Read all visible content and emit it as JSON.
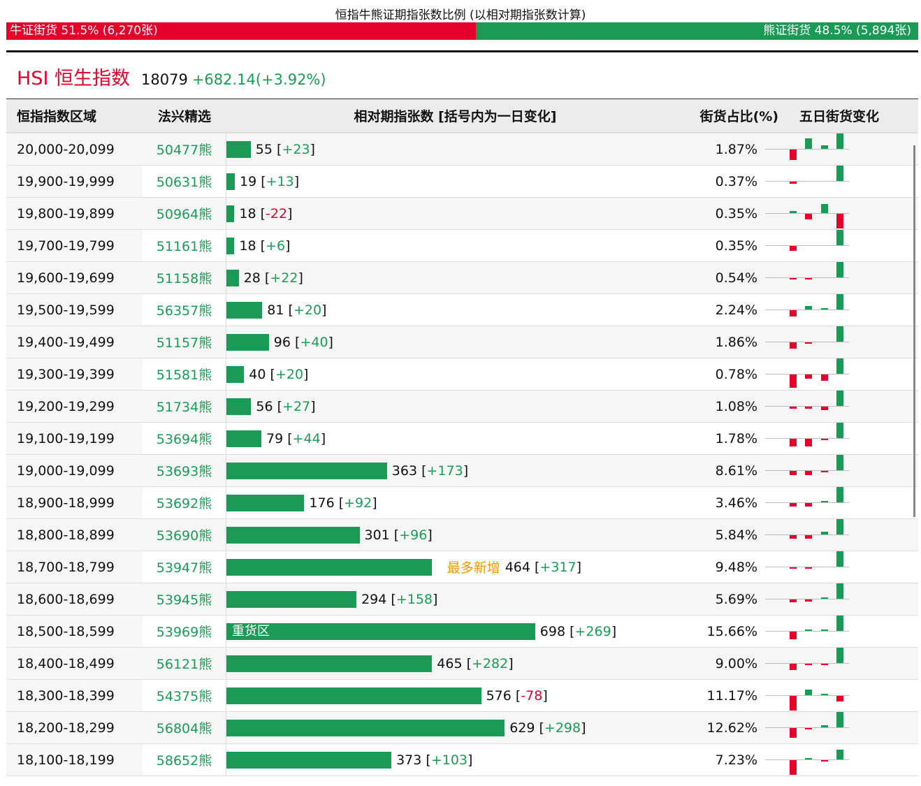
{
  "title": "恒指牛熊证期指张数比例 (以相对期指张数计算)",
  "bull": {
    "label": "牛证街货 51.5% (6,270张)",
    "share": 51.5
  },
  "bear": {
    "label": "熊证街货 48.5% (5,894张)",
    "share": 48.5
  },
  "index": {
    "name": "HSI 恒生指数",
    "price": "18079",
    "change": "+682.14(+3.92%)"
  },
  "colors": {
    "up": "#1b9a56",
    "down": "#e4002b",
    "highlight": "#f39800"
  },
  "headers": [
    "恒指指数区域",
    "法兴精选",
    "相对期指张数 [括号内为一日变化]",
    "街货占比(%)",
    "五日街货变化"
  ],
  "rows": [
    {
      "range": "20,000-20,099",
      "code": "50477熊",
      "count": 55,
      "count_label": "55",
      "chg": "+23",
      "pct": "1.87%",
      "spark": [
        -0.7,
        0.7,
        0.22,
        1
      ]
    },
    {
      "range": "19,900-19,999",
      "code": "50631熊",
      "count": 19,
      "count_label": "19",
      "chg": "+13",
      "pct": "0.37%",
      "spark": [
        -0.13,
        0,
        0,
        1
      ]
    },
    {
      "range": "19,800-19,899",
      "code": "50964熊",
      "count": 18,
      "count_label": "18",
      "chg": "-22",
      "pct": "0.35%",
      "spark": [
        0.13,
        -0.35,
        0.57,
        -0.96
      ]
    },
    {
      "range": "19,700-19,799",
      "code": "51161熊",
      "count": 18,
      "count_label": "18",
      "chg": "+6",
      "pct": "0.35%",
      "spark": [
        -0.3,
        0,
        0,
        1
      ]
    },
    {
      "range": "19,600-19,699",
      "code": "51158熊",
      "count": 28,
      "count_label": "28",
      "chg": "+22",
      "pct": "0.54%",
      "spark": [
        -0.09,
        -0.09,
        0,
        1
      ]
    },
    {
      "range": "19,500-19,599",
      "code": "56357熊",
      "count": 81,
      "count_label": "81",
      "chg": "+20",
      "pct": "2.24%",
      "spark": [
        -0.43,
        0.22,
        0.09,
        1
      ]
    },
    {
      "range": "19,400-19,499",
      "code": "51157熊",
      "count": 96,
      "count_label": "96",
      "chg": "+40",
      "pct": "1.86%",
      "spark": [
        -0.43,
        -0.05,
        0,
        1
      ]
    },
    {
      "range": "19,300-19,399",
      "code": "51581熊",
      "count": 40,
      "count_label": "40",
      "chg": "+20",
      "pct": "0.78%",
      "spark": [
        -0.87,
        -0.26,
        -0.39,
        1
      ]
    },
    {
      "range": "19,200-19,299",
      "code": "51734熊",
      "count": 56,
      "count_label": "56",
      "chg": "+27",
      "pct": "1.08%",
      "spark": [
        -0.13,
        -0.13,
        -0.22,
        1
      ]
    },
    {
      "range": "19,100-19,199",
      "code": "53694熊",
      "count": 79,
      "count_label": "79",
      "chg": "+44",
      "pct": "1.78%",
      "spark": [
        -0.48,
        -0.48,
        -0.09,
        1
      ]
    },
    {
      "range": "19,000-19,099",
      "code": "53693熊",
      "count": 363,
      "count_label": "363",
      "chg": "+173",
      "pct": "8.61%",
      "spark": [
        -0.26,
        -0.26,
        -0.09,
        1
      ]
    },
    {
      "range": "18,900-18,999",
      "code": "53692熊",
      "count": 176,
      "count_label": "176",
      "chg": "+92",
      "pct": "3.46%",
      "spark": [
        -0.22,
        -0.22,
        0.09,
        1
      ]
    },
    {
      "range": "18,800-18,899",
      "code": "53690熊",
      "count": 301,
      "count_label": "301",
      "chg": "+96",
      "pct": "5.84%",
      "spark": [
        -0.22,
        -0.22,
        0.17,
        1
      ]
    },
    {
      "range": "18,700-18,799",
      "code": "53947熊",
      "count": 464,
      "count_label": "464",
      "chg": "+317",
      "pct": "9.48%",
      "tag": "最多新增",
      "spark": [
        -0.05,
        -0.05,
        0,
        1
      ]
    },
    {
      "range": "18,600-18,699",
      "code": "53945熊",
      "count": 294,
      "count_label": "294",
      "chg": "+158",
      "pct": "5.69%",
      "spark": [
        -0.17,
        -0.13,
        0.09,
        1
      ]
    },
    {
      "range": "18,500-18,599",
      "code": "53969熊",
      "count": 698,
      "count_label": "698",
      "chg": "+269",
      "pct": "15.66%",
      "inner": "重货区",
      "spark": [
        -0.52,
        0.09,
        0.09,
        1
      ]
    },
    {
      "range": "18,400-18,499",
      "code": "56121熊",
      "count": 465,
      "count_label": "465",
      "chg": "+282",
      "pct": "9.00%",
      "spark": [
        -0.39,
        -0.05,
        -0.05,
        1
      ]
    },
    {
      "range": "18,300-18,399",
      "code": "54375熊",
      "count": 576,
      "count_label": "576",
      "chg": "-78",
      "pct": "11.17%",
      "spark": [
        -0.96,
        0.35,
        0.09,
        -0.35
      ]
    },
    {
      "range": "18,200-18,299",
      "code": "56804熊",
      "count": 629,
      "count_label": "629",
      "chg": "+298",
      "pct": "12.62%",
      "spark": [
        -0.65,
        -0.05,
        0.13,
        1
      ]
    },
    {
      "range": "18,100-18,199",
      "code": "58652熊",
      "count": 373,
      "count_label": "373",
      "chg": "+103",
      "pct": "7.23%",
      "spark": [
        -0.96,
        0.09,
        -0.05,
        0.65
      ]
    }
  ]
}
